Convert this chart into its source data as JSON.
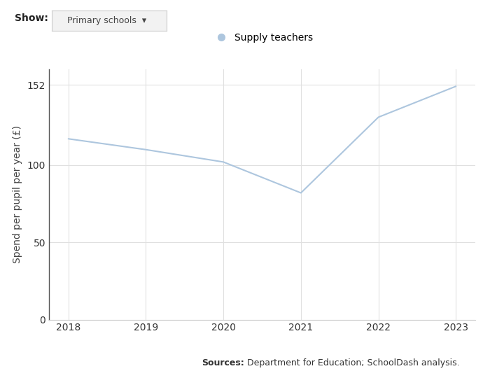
{
  "years": [
    2018,
    2019,
    2020,
    2021,
    2022,
    2023
  ],
  "values": [
    117,
    110,
    102,
    82,
    131,
    151
  ],
  "line_color": "#adc6de",
  "legend_label": "Supply teachers",
  "legend_marker_color": "#adc6de",
  "ylabel": "Spend per pupil per year (£)",
  "ylim": [
    0,
    162
  ],
  "yticks": [
    0,
    50,
    100,
    152
  ],
  "xlim": [
    2017.75,
    2023.25
  ],
  "xticks": [
    2018,
    2019,
    2020,
    2021,
    2022,
    2023
  ],
  "grid_color": "#e0e0e0",
  "bg_color": "#ffffff",
  "source_bold": "Sources:",
  "source_rest": " Department for Education; SchoolDash analysis.",
  "show_label": "Show:",
  "dropdown_label": "Primary schools",
  "axis_fontsize": 10,
  "source_fontsize": 9,
  "tick_fontsize": 10
}
